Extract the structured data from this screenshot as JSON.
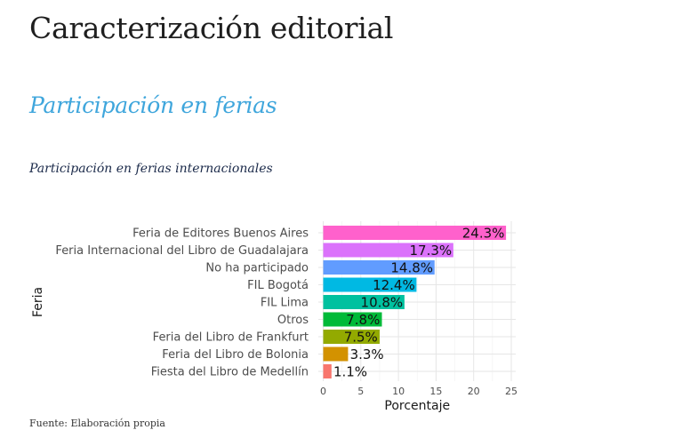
{
  "header": {
    "title": "Caracterización editorial",
    "section_title": "Participación en ferias",
    "chart_heading": "Participación en ferias internacionales"
  },
  "footer": {
    "source": "Fuente: Elaboración propia"
  },
  "chart_data": {
    "type": "bar",
    "orientation": "horizontal",
    "xlabel": "Porcentaje",
    "ylabel": "Feria",
    "xlim": [
      0,
      25.5
    ],
    "xticks": [
      0,
      5,
      10,
      15,
      20,
      25
    ],
    "grid": true,
    "legend": "none",
    "categories": [
      "Feria de Editores Buenos Aires",
      "Feria Internacional del Libro de Guadalajara",
      "No ha participado",
      "FIL Bogotá",
      "FIL Lima",
      "Otros",
      "Feria del Libro de Frankfurt",
      "Feria del Libro de Bolonia",
      "Fiesta del Libro de Medellín"
    ],
    "values": [
      24.3,
      17.3,
      14.8,
      12.4,
      10.8,
      7.8,
      7.5,
      3.3,
      1.1
    ],
    "labels": [
      "24.3%",
      "17.3%",
      "14.8%",
      "12.4%",
      "10.8%",
      "7.8%",
      "7.5%",
      "3.3%",
      "1.1%"
    ],
    "colors": [
      "#ff61cc",
      "#db72fb",
      "#619cff",
      "#00b9e3",
      "#00c19f",
      "#00ba38",
      "#93aa00",
      "#d39200",
      "#f8766d"
    ]
  }
}
